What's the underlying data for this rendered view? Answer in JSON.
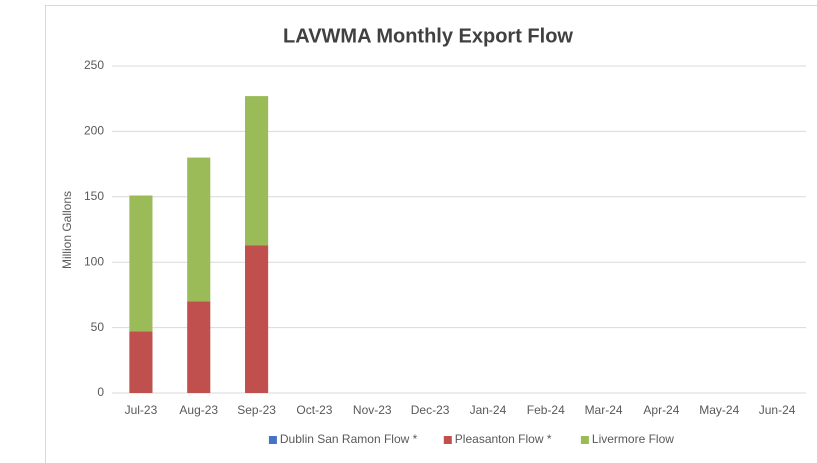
{
  "chart_data": {
    "type": "stacked_bar",
    "title": "LAVWMA Monthly Export Flow",
    "y_label": "Million Gallons",
    "categories": [
      "Jul-23",
      "Aug-23",
      "Sep-23",
      "Oct-23",
      "Nov-23",
      "Dec-23",
      "Jan-24",
      "Feb-24",
      "Mar-24",
      "Apr-24",
      "May-24",
      "Jun-24"
    ],
    "series": [
      {
        "name": "Dublin San Ramon Flow *",
        "color": "#4472c4",
        "values": [
          0,
          0,
          0,
          null,
          null,
          null,
          null,
          null,
          null,
          null,
          null,
          null
        ]
      },
      {
        "name": "Pleasanton Flow *",
        "color": "#c0504d",
        "values": [
          47,
          70,
          113,
          null,
          null,
          null,
          null,
          null,
          null,
          null,
          null,
          null
        ]
      },
      {
        "name": "Livermore Flow",
        "color": "#9bbb59",
        "values": [
          104,
          110,
          114,
          null,
          null,
          null,
          null,
          null,
          null,
          null,
          null,
          null
        ]
      }
    ],
    "ylim": [
      0,
      250
    ],
    "yticks": [
      0,
      50,
      100,
      150,
      200,
      250
    ],
    "grid": true,
    "legend": "bottom"
  }
}
